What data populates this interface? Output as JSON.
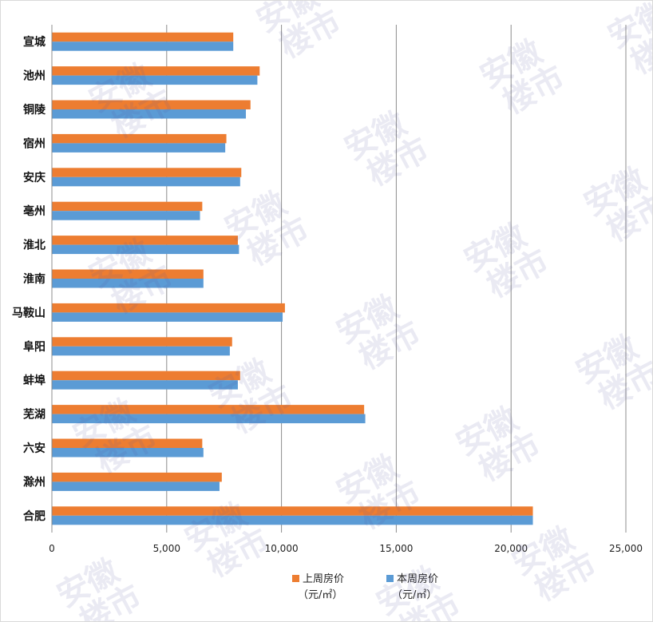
{
  "chart_data": {
    "type": "bar",
    "orientation": "horizontal",
    "categories": [
      "宣城",
      "池州",
      "铜陵",
      "宿州",
      "安庆",
      "亳州",
      "淮北",
      "淮南",
      "马鞍山",
      "阜阳",
      "蚌埠",
      "芜湖",
      "六安",
      "滁州",
      "合肥"
    ],
    "series": [
      {
        "name": "上周房价（元/㎡）",
        "color": "#ED7D31",
        "values": [
          7900,
          9050,
          8650,
          7600,
          8250,
          6550,
          8100,
          6600,
          10150,
          7850,
          8200,
          13600,
          6550,
          7400,
          20950
        ]
      },
      {
        "name": "本周房价（元/㎡）",
        "color": "#5B9BD5",
        "values": [
          7900,
          8950,
          8450,
          7550,
          8200,
          6450,
          8150,
          6600,
          10050,
          7750,
          8100,
          13650,
          6600,
          7300,
          20950
        ]
      }
    ],
    "xlim": [
      0,
      25000
    ],
    "xticks": [
      "0",
      "5,000",
      "10,000",
      "15,000",
      "20,000",
      "25,000"
    ],
    "grid": true,
    "legend_position": "bottom"
  },
  "legend": [
    {
      "line1": "上周房价",
      "line2": "（元/㎡）"
    },
    {
      "line1": "本周房价",
      "line2": "（元/㎡）"
    }
  ],
  "watermark": [
    "安徽",
    "楼市"
  ]
}
